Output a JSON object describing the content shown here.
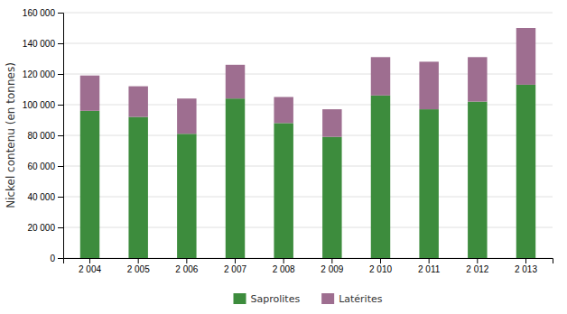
{
  "chart_data": {
    "type": "bar",
    "stacked": true,
    "categories": [
      "2 004",
      "2 005",
      "2 006",
      "2 007",
      "2 008",
      "2 009",
      "2 010",
      "2 011",
      "2 012",
      "2 013"
    ],
    "series": [
      {
        "name": "Saprolites",
        "color": "#3d8c3d",
        "values": [
          96000,
          92000,
          81000,
          104000,
          88000,
          79000,
          106000,
          97000,
          102000,
          113000
        ]
      },
      {
        "name": "Latérites",
        "color": "#9e6e90",
        "values": [
          23000,
          20000,
          23000,
          22000,
          17000,
          18000,
          25000,
          31000,
          29000,
          37000
        ]
      }
    ],
    "y_label": "Nickel contenu (en tonnes)",
    "ylim": [
      0,
      160000
    ],
    "yticks": [
      0,
      {
        "value": 20000,
        "label": "20 000"
      },
      {
        "value": 40000,
        "label": "40 000"
      },
      {
        "value": 60000,
        "label": "60 000"
      },
      {
        "value": 80000,
        "label": "80 000"
      },
      {
        "value": 100000,
        "label": "100 000"
      },
      {
        "value": 120000,
        "label": "120 000"
      },
      {
        "value": 140000,
        "label": "140 000"
      },
      {
        "value": 160000,
        "label": "160 000"
      }
    ],
    "grid": true,
    "legend": "bottom"
  }
}
